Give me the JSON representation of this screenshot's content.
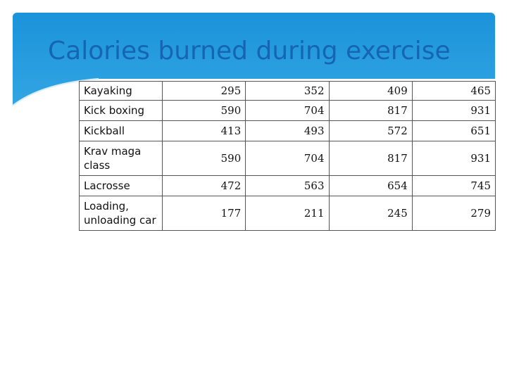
{
  "slide": {
    "title": "Calories burned during exercise",
    "accent_color": "#1b93da",
    "title_color": "#1565b3"
  },
  "table": {
    "rows": [
      {
        "activity": "Kayaking",
        "values": [
          "295",
          "352",
          "409",
          "465"
        ]
      },
      {
        "activity": "Kick boxing",
        "values": [
          "590",
          "704",
          "817",
          "931"
        ]
      },
      {
        "activity": "Kickball",
        "values": [
          "413",
          "493",
          "572",
          "651"
        ]
      },
      {
        "activity": "Krav maga class",
        "values": [
          "590",
          "704",
          "817",
          "931"
        ]
      },
      {
        "activity": "Lacrosse",
        "values": [
          "472",
          "563",
          "654",
          "745"
        ]
      },
      {
        "activity": "Loading, unloading car",
        "values": [
          "177",
          "211",
          "245",
          "279"
        ]
      }
    ]
  }
}
